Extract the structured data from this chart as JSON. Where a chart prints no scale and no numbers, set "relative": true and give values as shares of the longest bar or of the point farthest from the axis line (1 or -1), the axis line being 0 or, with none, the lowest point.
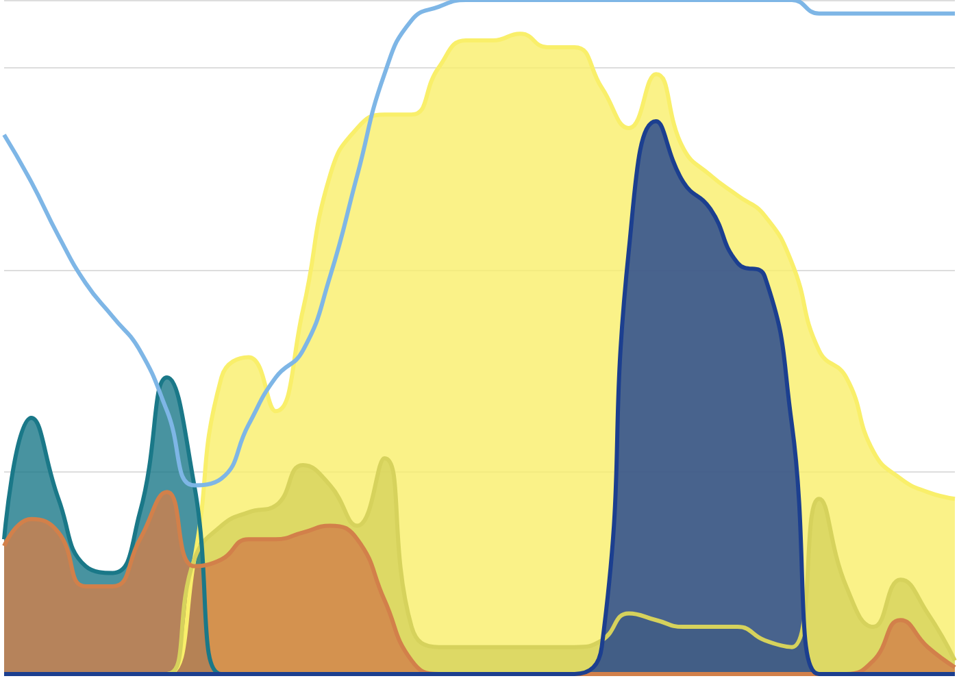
{
  "chart_data": {
    "type": "area",
    "relative": true,
    "grid": "y",
    "marker": "none",
    "categories": [
      null,
      null,
      null,
      null,
      null,
      null,
      null,
      null,
      null,
      null,
      null,
      null,
      null,
      null,
      null,
      null,
      null,
      null,
      null,
      null,
      null,
      null,
      null,
      null,
      null,
      null,
      null,
      null,
      null,
      null,
      null,
      null,
      null,
      null,
      null,
      null
    ],
    "series": [
      {
        "color": "#f9ef6a",
        "values": [
          0,
          0,
          0,
          0,
          0,
          0,
          0,
          0.17,
          0.44,
          0.47,
          0.39,
          0.54,
          0.74,
          0.81,
          0.83,
          0.83,
          0.9,
          0.94,
          0.94,
          0.95,
          0.93,
          0.93,
          0.87,
          0.81,
          0.89,
          0.78,
          0.74,
          0.71,
          0.68,
          0.61,
          0.48,
          0.44,
          0.33,
          0.29,
          0.27,
          0.26
        ]
      },
      {
        "color": "#d6d25c",
        "values": [
          0,
          0,
          0,
          0,
          0,
          0,
          0,
          0.17,
          0.22,
          0.24,
          0.25,
          0.31,
          0.28,
          0.22,
          0.32,
          0.07,
          0.04,
          0.04,
          0.04,
          0.04,
          0.04,
          0.04,
          0.05,
          0.09,
          0.08,
          0.07,
          0.07,
          0.07,
          0.05,
          0.04,
          0.26,
          0.13,
          0.07,
          0.14,
          0.09,
          0.02
        ]
      },
      {
        "color": "#1a7888",
        "values": [
          0.2,
          0.38,
          0.26,
          0.16,
          0.15,
          0.24,
          0.44,
          0.28,
          0,
          0,
          0,
          0,
          0,
          0,
          0,
          0,
          0,
          0,
          0,
          0,
          0,
          0,
          0,
          0,
          0,
          0,
          0,
          0,
          0,
          0,
          0,
          0,
          0,
          0,
          0,
          0
        ]
      },
      {
        "color": "#d2804a",
        "values": [
          0.19,
          0.23,
          0.21,
          0.13,
          0.13,
          0.2,
          0.27,
          0.16,
          0.17,
          0.2,
          0.2,
          0.21,
          0.22,
          0.2,
          0.11,
          0.02,
          0,
          0,
          0,
          0,
          0,
          0,
          0,
          0,
          0,
          0,
          0,
          0,
          0,
          0,
          0,
          0,
          0.02,
          0.08,
          0.04,
          0.01
        ]
      },
      {
        "color": "#1c3f8f",
        "values": [
          0,
          0,
          0,
          0,
          0,
          0,
          0,
          0,
          0,
          0,
          0,
          0,
          0,
          0,
          0,
          0,
          0,
          0,
          0,
          0,
          0,
          0,
          0.04,
          0.63,
          0.82,
          0.73,
          0.69,
          0.61,
          0.59,
          0.37,
          0,
          0,
          0,
          0,
          0,
          0
        ]
      },
      {
        "type": "line",
        "color": "#7eb6e6",
        "values": [
          0.8,
          0.73,
          0.65,
          0.58,
          0.53,
          0.48,
          0.39,
          0.28,
          0.29,
          0.37,
          0.44,
          0.48,
          0.59,
          0.74,
          0.89,
          0.97,
          0.99,
          1,
          1,
          1,
          1,
          1,
          1,
          1,
          1,
          1,
          1,
          1,
          1,
          1,
          0.98,
          0.98,
          0.98,
          0.98,
          0.98,
          0.98
        ]
      }
    ]
  }
}
